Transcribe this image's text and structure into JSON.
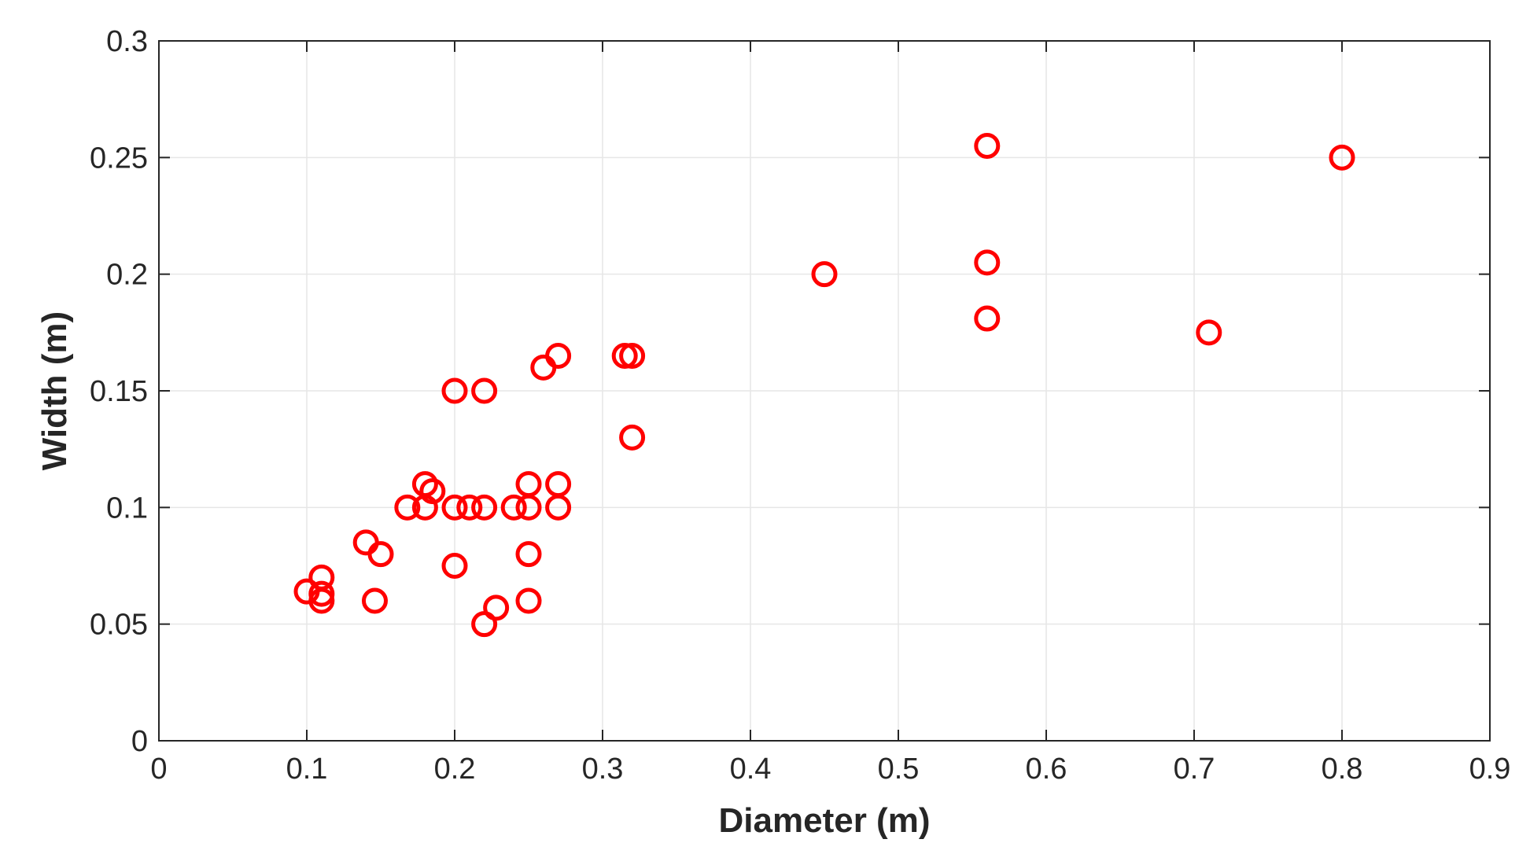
{
  "chart_data": {
    "type": "scatter",
    "title": "",
    "xlabel": "Diameter (m)",
    "ylabel": "Width (m)",
    "xlim": [
      0,
      0.9
    ],
    "ylim": [
      0,
      0.3
    ],
    "x_ticks": [
      0,
      0.1,
      0.2,
      0.3,
      0.4,
      0.5,
      0.6,
      0.7,
      0.8,
      0.9
    ],
    "x_tick_labels": [
      "0",
      "0.1",
      "0.2",
      "0.3",
      "0.4",
      "0.5",
      "0.6",
      "0.7",
      "0.8",
      "0.9"
    ],
    "y_ticks": [
      0,
      0.05,
      0.1,
      0.15,
      0.2,
      0.25,
      0.3
    ],
    "y_tick_labels": [
      "0",
      "0.05",
      "0.1",
      "0.15",
      "0.2",
      "0.25",
      "0.3"
    ],
    "grid": true,
    "marker": "open-circle",
    "marker_color": "#ff0000",
    "series": [
      {
        "points": [
          {
            "x": 0.1,
            "y": 0.064
          },
          {
            "x": 0.11,
            "y": 0.07
          },
          {
            "x": 0.11,
            "y": 0.063
          },
          {
            "x": 0.11,
            "y": 0.06
          },
          {
            "x": 0.14,
            "y": 0.085
          },
          {
            "x": 0.15,
            "y": 0.08
          },
          {
            "x": 0.146,
            "y": 0.06
          },
          {
            "x": 0.168,
            "y": 0.1
          },
          {
            "x": 0.18,
            "y": 0.1
          },
          {
            "x": 0.18,
            "y": 0.11
          },
          {
            "x": 0.185,
            "y": 0.107
          },
          {
            "x": 0.2,
            "y": 0.1
          },
          {
            "x": 0.21,
            "y": 0.1
          },
          {
            "x": 0.22,
            "y": 0.1
          },
          {
            "x": 0.2,
            "y": 0.15
          },
          {
            "x": 0.22,
            "y": 0.15
          },
          {
            "x": 0.2,
            "y": 0.075
          },
          {
            "x": 0.22,
            "y": 0.05
          },
          {
            "x": 0.228,
            "y": 0.057
          },
          {
            "x": 0.24,
            "y": 0.1
          },
          {
            "x": 0.25,
            "y": 0.1
          },
          {
            "x": 0.25,
            "y": 0.11
          },
          {
            "x": 0.25,
            "y": 0.08
          },
          {
            "x": 0.25,
            "y": 0.06
          },
          {
            "x": 0.26,
            "y": 0.16
          },
          {
            "x": 0.27,
            "y": 0.165
          },
          {
            "x": 0.27,
            "y": 0.11
          },
          {
            "x": 0.27,
            "y": 0.1
          },
          {
            "x": 0.315,
            "y": 0.165
          },
          {
            "x": 0.32,
            "y": 0.165
          },
          {
            "x": 0.32,
            "y": 0.13
          },
          {
            "x": 0.45,
            "y": 0.2
          },
          {
            "x": 0.56,
            "y": 0.255
          },
          {
            "x": 0.56,
            "y": 0.205
          },
          {
            "x": 0.56,
            "y": 0.181
          },
          {
            "x": 0.71,
            "y": 0.175
          },
          {
            "x": 0.8,
            "y": 0.25
          }
        ]
      }
    ]
  }
}
